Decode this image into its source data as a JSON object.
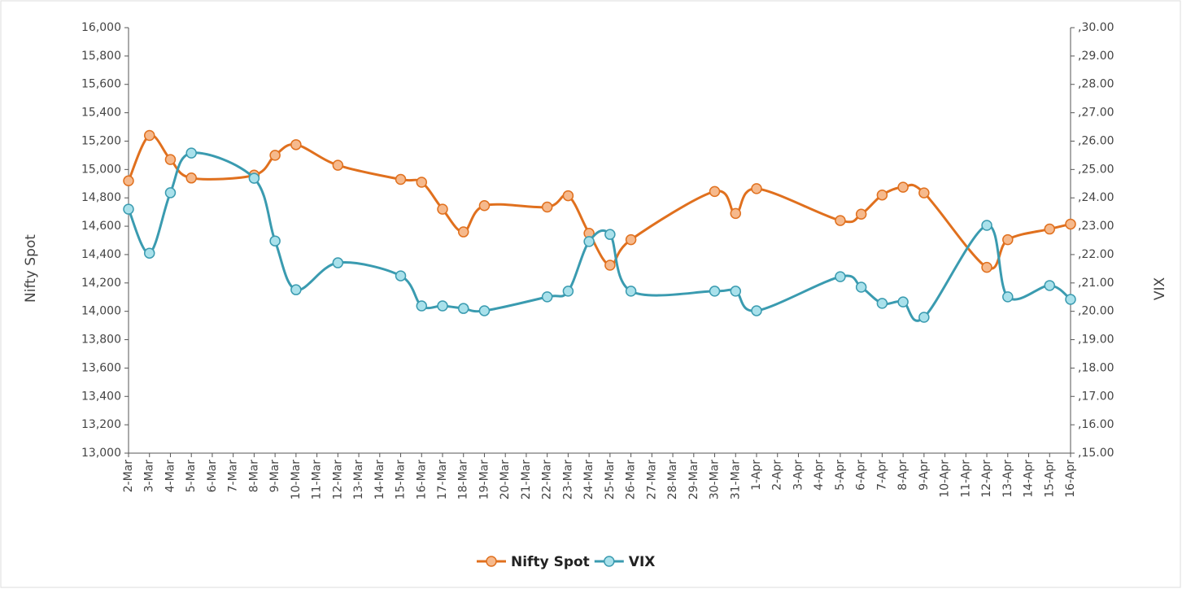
{
  "chart_data": {
    "type": "line",
    "categories": [
      "2-Mar",
      "3-Mar",
      "4-Mar",
      "5-Mar",
      "6-Mar",
      "7-Mar",
      "8-Mar",
      "9-Mar",
      "10-Mar",
      "11-Mar",
      "12-Mar",
      "13-Mar",
      "14-Mar",
      "15-Mar",
      "16-Mar",
      "17-Mar",
      "18-Mar",
      "19-Mar",
      "20-Mar",
      "21-Mar",
      "22-Mar",
      "23-Mar",
      "24-Mar",
      "25-Mar",
      "26-Mar",
      "27-Mar",
      "28-Mar",
      "29-Mar",
      "30-Mar",
      "31-Mar",
      "1-Apr",
      "2-Apr",
      "3-Apr",
      "4-Apr",
      "5-Apr",
      "6-Apr",
      "7-Apr",
      "8-Apr",
      "9-Apr",
      "10-Apr",
      "11-Apr",
      "12-Apr",
      "13-Apr",
      "14-Apr",
      "15-Apr",
      "16-Apr"
    ],
    "y_label": "Nifty Spot",
    "y2_label": "VIX",
    "ylim": [
      13000,
      16000
    ],
    "yticks": [
      {
        "value": 13000,
        "label": "13,000"
      },
      {
        "value": 13200,
        "label": "13,200"
      },
      {
        "value": 13400,
        "label": "13,400"
      },
      {
        "value": 13600,
        "label": "13,600"
      },
      {
        "value": 13800,
        "label": "13,800"
      },
      {
        "value": 14000,
        "label": "14,000"
      },
      {
        "value": 14200,
        "label": "14,200"
      },
      {
        "value": 14400,
        "label": "14,400"
      },
      {
        "value": 14600,
        "label": "14,600"
      },
      {
        "value": 14800,
        "label": "14,800"
      },
      {
        "value": 15000,
        "label": "15,000"
      },
      {
        "value": 15200,
        "label": "15,200"
      },
      {
        "value": 15400,
        "label": "15,400"
      },
      {
        "value": 15600,
        "label": "15,600"
      },
      {
        "value": 15800,
        "label": "15,800"
      },
      {
        "value": 16000,
        "label": "16,000"
      }
    ],
    "y2lim": [
      15,
      30
    ],
    "y2ticks": [
      {
        "value": 15,
        "label": ",15.00"
      },
      {
        "value": 16,
        "label": ",16.00"
      },
      {
        "value": 17,
        "label": ",17.00"
      },
      {
        "value": 18,
        "label": ",18.00"
      },
      {
        "value": 19,
        "label": ",19.00"
      },
      {
        "value": 20,
        "label": ",20.00"
      },
      {
        "value": 21,
        "label": ",21.00"
      },
      {
        "value": 22,
        "label": ",22.00"
      },
      {
        "value": 23,
        "label": ",23.00"
      },
      {
        "value": 24,
        "label": ",24.00"
      },
      {
        "value": 25,
        "label": ",25.00"
      },
      {
        "value": 26,
        "label": ",26.00"
      },
      {
        "value": 27,
        "label": ",27.00"
      },
      {
        "value": 28,
        "label": ",28.00"
      },
      {
        "value": 29,
        "label": ",29.00"
      },
      {
        "value": 30,
        "label": ",30.00"
      }
    ],
    "series": [
      {
        "name": "Nifty Spot",
        "color": "#e0701e",
        "marker_fill": "#f6b98c",
        "x": [
          "2-Mar",
          "3-Mar",
          "4-Mar",
          "5-Mar",
          "8-Mar",
          "9-Mar",
          "10-Mar",
          "12-Mar",
          "15-Mar",
          "16-Mar",
          "17-Mar",
          "18-Mar",
          "19-Mar",
          "22-Mar",
          "23-Mar",
          "24-Mar",
          "25-Mar",
          "26-Mar",
          "30-Mar",
          "31-Mar",
          "1-Apr",
          "5-Apr",
          "6-Apr",
          "7-Apr",
          "8-Apr",
          "9-Apr",
          "12-Apr",
          "13-Apr",
          "15-Apr",
          "16-Apr"
        ],
        "values": [
          14920,
          15240,
          15070,
          14940,
          14960,
          15100,
          15175,
          15030,
          14930,
          14910,
          14720,
          14560,
          14745,
          14735,
          14815,
          14550,
          14325,
          14505,
          14845,
          14690,
          14865,
          14640,
          14685,
          14820,
          14875,
          14835,
          14310,
          14505,
          14580,
          14615
        ]
      },
      {
        "name": "VIX",
        "color": "#3a9bb0",
        "marker_fill": "#a9e1eb",
        "axis": "y2",
        "x": [
          "2-Mar",
          "3-Mar",
          "4-Mar",
          "5-Mar",
          "8-Mar",
          "9-Mar",
          "10-Mar",
          "12-Mar",
          "15-Mar",
          "16-Mar",
          "17-Mar",
          "18-Mar",
          "19-Mar",
          "22-Mar",
          "23-Mar",
          "24-Mar",
          "25-Mar",
          "26-Mar",
          "30-Mar",
          "31-Mar",
          "1-Apr",
          "5-Apr",
          "6-Apr",
          "7-Apr",
          "8-Apr",
          "9-Apr",
          "12-Apr",
          "13-Apr",
          "15-Apr",
          "16-Apr"
        ],
        "values": [
          23.6,
          22.05,
          24.18,
          25.58,
          24.69,
          22.48,
          20.76,
          21.71,
          21.25,
          20.19,
          20.19,
          20.1,
          20.02,
          20.51,
          20.71,
          22.46,
          22.71,
          20.71,
          20.71,
          20.71,
          20.02,
          21.22,
          20.85,
          20.28,
          20.33,
          19.79,
          23.03,
          20.51,
          20.91,
          20.42
        ]
      }
    ]
  }
}
